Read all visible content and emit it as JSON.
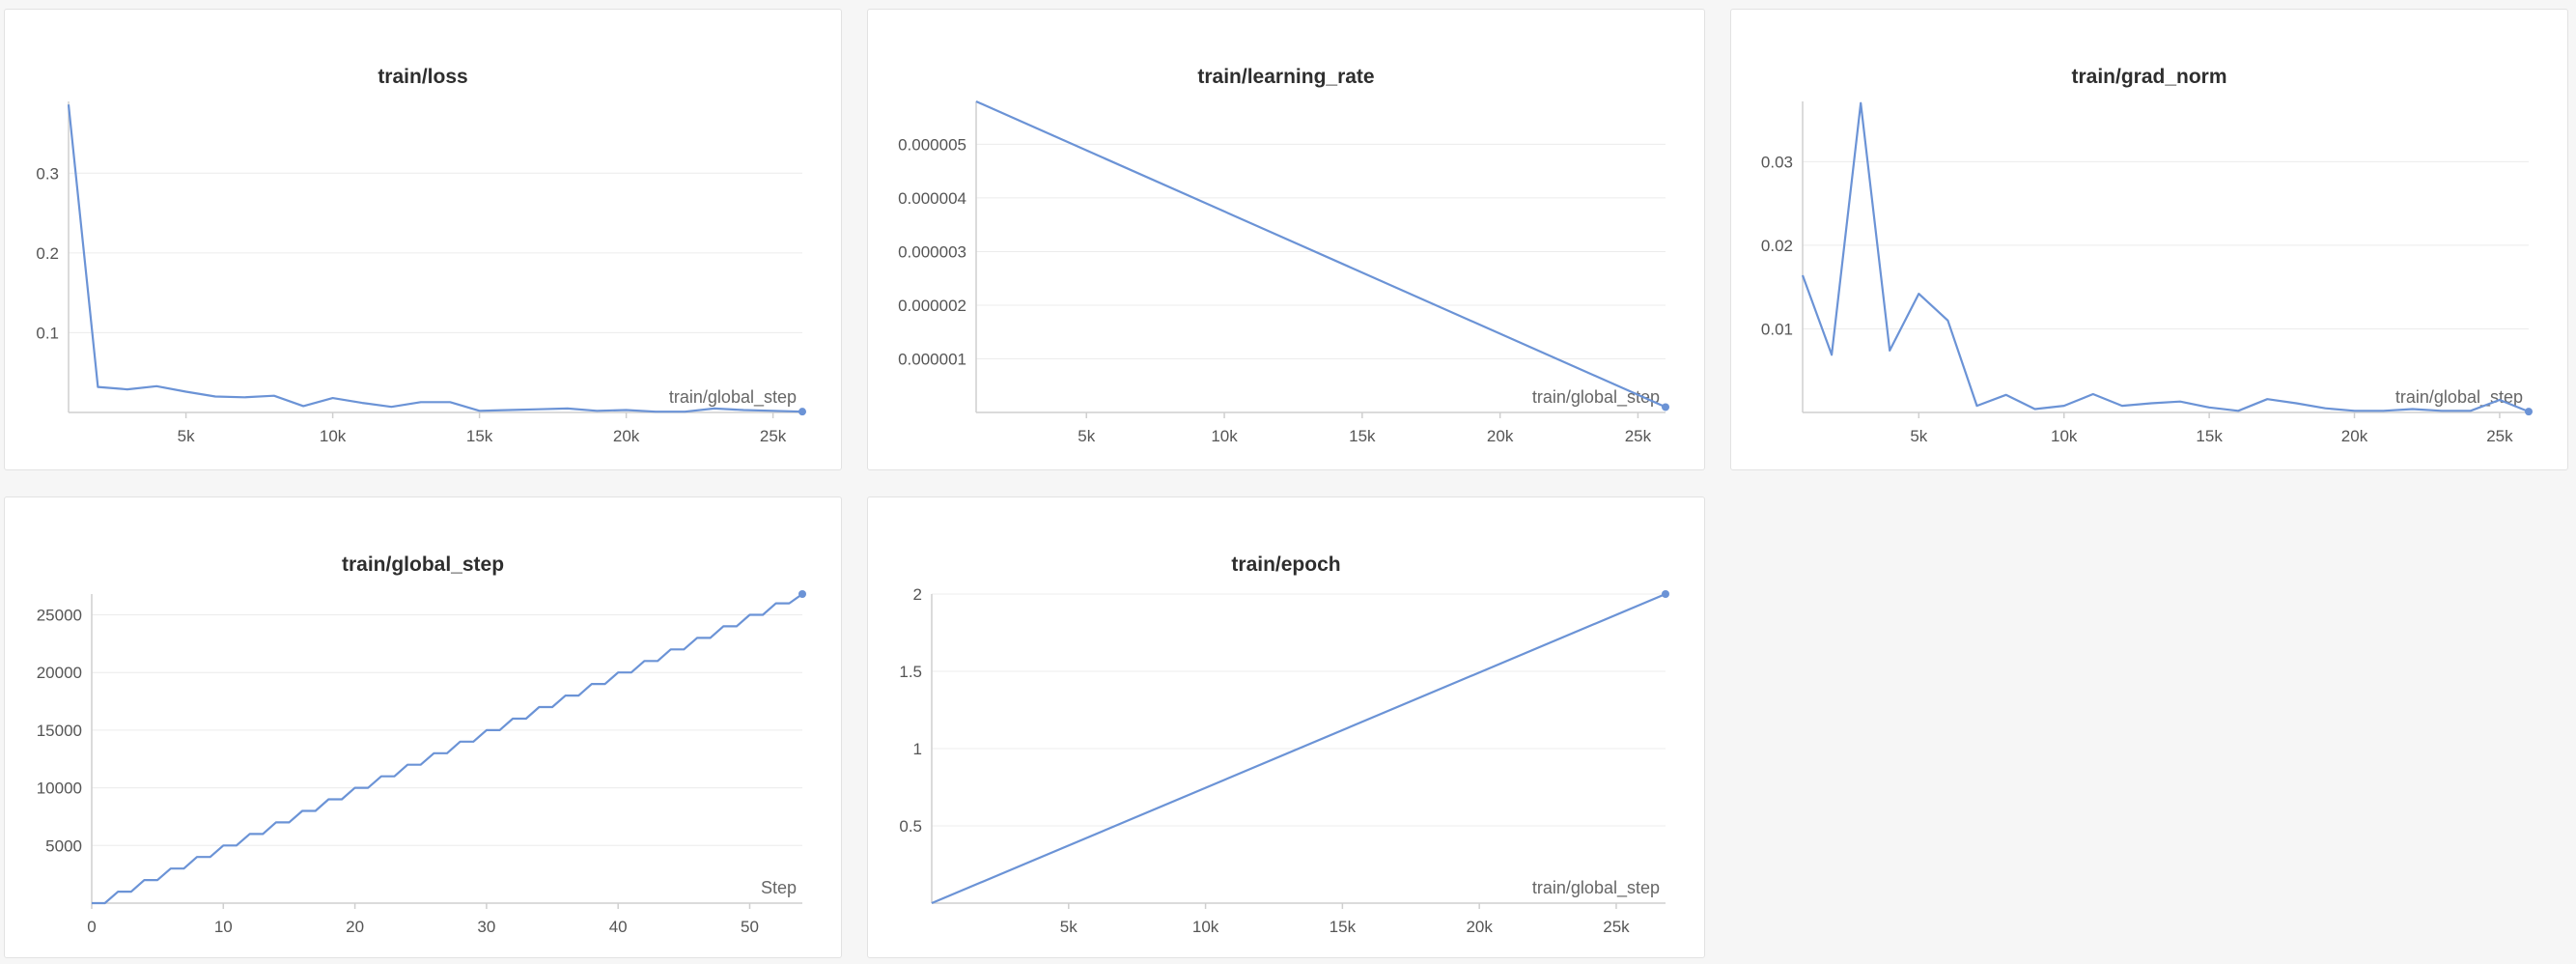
{
  "colors": {
    "line": "#6b93d6",
    "grid": "#ececec",
    "axis": "#cfcfcf"
  },
  "chart_data": [
    {
      "id": "loss",
      "type": "line",
      "title": "train/loss",
      "xlabel": "train/global_step",
      "xlim": [
        1000,
        26000
      ],
      "ylim": [
        0,
        0.39
      ],
      "xticks": [
        5000,
        10000,
        15000,
        20000,
        25000
      ],
      "xtick_labels": [
        "5k",
        "10k",
        "15k",
        "20k",
        "25k"
      ],
      "yticks": [
        0.1,
        0.2,
        0.3
      ],
      "ytick_labels": [
        "0.1",
        "0.2",
        "0.3"
      ],
      "x": [
        1000,
        2000,
        3000,
        4000,
        5000,
        6000,
        7000,
        8000,
        9000,
        10000,
        11000,
        12000,
        13000,
        14000,
        15000,
        16000,
        17000,
        18000,
        19000,
        20000,
        21000,
        22000,
        23000,
        24000,
        25000,
        26000
      ],
      "y": [
        0.386,
        0.032,
        0.029,
        0.033,
        0.026,
        0.02,
        0.019,
        0.021,
        0.008,
        0.018,
        0.012,
        0.007,
        0.013,
        0.013,
        0.002,
        0.003,
        0.004,
        0.005,
        0.002,
        0.003,
        0.001,
        0.001,
        0.005,
        0.003,
        0.002,
        0.001
      ]
    },
    {
      "id": "lr",
      "type": "line",
      "title": "train/learning_rate",
      "xlabel": "train/global_step",
      "xlim": [
        1000,
        26000
      ],
      "ylim": [
        0,
        5.8e-06
      ],
      "xticks": [
        5000,
        10000,
        15000,
        20000,
        25000
      ],
      "xtick_labels": [
        "5k",
        "10k",
        "15k",
        "20k",
        "25k"
      ],
      "yticks": [
        1e-06,
        2e-06,
        3e-06,
        4e-06,
        5e-06
      ],
      "ytick_labels": [
        "0.000001",
        "0.000002",
        "0.000003",
        "0.000004",
        "0.000005"
      ],
      "x": [
        1000,
        26000
      ],
      "y": [
        5.8e-06,
        1e-07
      ]
    },
    {
      "id": "grad",
      "type": "line",
      "title": "train/grad_norm",
      "xlabel": "train/global_step",
      "xlim": [
        1000,
        26000
      ],
      "ylim": [
        0,
        0.0372
      ],
      "xticks": [
        5000,
        10000,
        15000,
        20000,
        25000
      ],
      "xtick_labels": [
        "5k",
        "10k",
        "15k",
        "20k",
        "25k"
      ],
      "yticks": [
        0.01,
        0.02,
        0.03
      ],
      "ytick_labels": [
        "0.01",
        "0.02",
        "0.03"
      ],
      "x": [
        1000,
        2000,
        3000,
        4000,
        5000,
        6000,
        7000,
        8000,
        9000,
        10000,
        11000,
        12000,
        13000,
        14000,
        15000,
        16000,
        17000,
        18000,
        19000,
        20000,
        21000,
        22000,
        23000,
        24000,
        25000,
        26000
      ],
      "y": [
        0.0164,
        0.0069,
        0.037,
        0.0074,
        0.0142,
        0.011,
        0.0008,
        0.0021,
        0.0004,
        0.0008,
        0.0022,
        0.0008,
        0.0011,
        0.0013,
        0.0006,
        0.0002,
        0.0016,
        0.0011,
        0.0005,
        0.0002,
        0.0002,
        0.0004,
        0.0002,
        0.0002,
        0.0015,
        0.0001
      ]
    },
    {
      "id": "gstep",
      "type": "line",
      "title": "train/global_step",
      "xlabel": "Step",
      "xlim": [
        0,
        54
      ],
      "ylim": [
        0,
        26800
      ],
      "xticks": [
        0,
        10,
        20,
        30,
        40,
        50
      ],
      "xtick_labels": [
        "0",
        "10",
        "20",
        "30",
        "40",
        "50"
      ],
      "yticks": [
        5000,
        10000,
        15000,
        20000,
        25000
      ],
      "ytick_labels": [
        "5000",
        "10000",
        "15000",
        "20000",
        "25000"
      ],
      "x": [
        0,
        1,
        2,
        3,
        4,
        5,
        6,
        7,
        8,
        9,
        10,
        11,
        12,
        13,
        14,
        15,
        16,
        17,
        18,
        19,
        20,
        21,
        22,
        23,
        24,
        25,
        26,
        27,
        28,
        29,
        30,
        31,
        32,
        33,
        34,
        35,
        36,
        37,
        38,
        39,
        40,
        41,
        42,
        43,
        44,
        45,
        46,
        47,
        48,
        49,
        50,
        51,
        52,
        53,
        54
      ],
      "y": [
        0,
        0,
        1000,
        1000,
        2000,
        2000,
        3000,
        3000,
        4000,
        4000,
        5000,
        5000,
        6000,
        6000,
        7000,
        7000,
        8000,
        8000,
        9000,
        9000,
        10000,
        10000,
        11000,
        11000,
        12000,
        12000,
        13000,
        13000,
        14000,
        14000,
        15000,
        15000,
        16000,
        16000,
        17000,
        17000,
        18000,
        18000,
        19000,
        19000,
        20000,
        20000,
        21000,
        21000,
        22000,
        22000,
        23000,
        23000,
        24000,
        24000,
        25000,
        25000,
        26000,
        26000,
        26800
      ]
    },
    {
      "id": "epoch",
      "type": "line",
      "title": "train/epoch",
      "xlabel": "train/global_step",
      "xlim": [
        0,
        26800
      ],
      "ylim": [
        0,
        2
      ],
      "xticks": [
        5000,
        10000,
        15000,
        20000,
        25000
      ],
      "xtick_labels": [
        "5k",
        "10k",
        "15k",
        "20k",
        "25k"
      ],
      "yticks": [
        0.5,
        1,
        1.5,
        2
      ],
      "ytick_labels": [
        "0.5",
        "1",
        "1.5",
        "2"
      ],
      "x": [
        0,
        26800
      ],
      "y": [
        0,
        2
      ]
    }
  ]
}
